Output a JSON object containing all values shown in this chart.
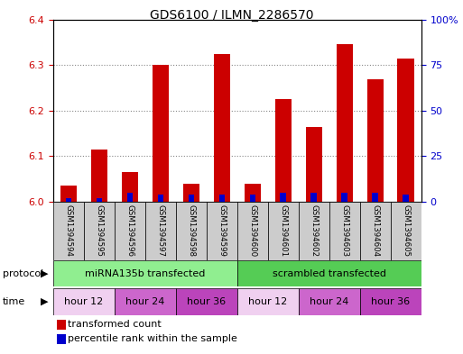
{
  "title": "GDS6100 / ILMN_2286570",
  "samples": [
    "GSM1394594",
    "GSM1394595",
    "GSM1394596",
    "GSM1394597",
    "GSM1394598",
    "GSM1394599",
    "GSM1394600",
    "GSM1394601",
    "GSM1394602",
    "GSM1394603",
    "GSM1394604",
    "GSM1394605"
  ],
  "transformed_counts": [
    6.035,
    6.115,
    6.065,
    6.3,
    6.04,
    6.325,
    6.04,
    6.225,
    6.165,
    6.345,
    6.268,
    6.315
  ],
  "percentile_ranks": [
    2,
    2,
    5,
    4,
    4,
    4,
    4,
    5,
    5,
    5,
    5,
    4
  ],
  "base_value": 6.0,
  "ylim_left": [
    6.0,
    6.4
  ],
  "ylim_right": [
    0,
    100
  ],
  "yticks_left": [
    6.0,
    6.1,
    6.2,
    6.3,
    6.4
  ],
  "yticks_right": [
    0,
    25,
    50,
    75,
    100
  ],
  "yticklabels_right": [
    "0",
    "25",
    "50",
    "75",
    "100%"
  ],
  "grid_values": [
    6.1,
    6.2,
    6.3
  ],
  "bar_color": "#cc0000",
  "pct_color": "#0000cc",
  "bar_width": 0.55,
  "pct_bar_width": 0.2,
  "protocols": [
    {
      "label": "miRNA135b transfected",
      "start": 0,
      "end": 6,
      "color": "#90ee90"
    },
    {
      "label": "scrambled transfected",
      "start": 6,
      "end": 12,
      "color": "#55cc55"
    }
  ],
  "times": [
    {
      "label": "hour 12",
      "start": 0,
      "end": 2,
      "color": "#f0d0f0"
    },
    {
      "label": "hour 24",
      "start": 2,
      "end": 4,
      "color": "#cc66cc"
    },
    {
      "label": "hour 36",
      "start": 4,
      "end": 6,
      "color": "#bb44bb"
    },
    {
      "label": "hour 12",
      "start": 6,
      "end": 8,
      "color": "#f0d0f0"
    },
    {
      "label": "hour 24",
      "start": 8,
      "end": 10,
      "color": "#cc66cc"
    },
    {
      "label": "hour 36",
      "start": 10,
      "end": 12,
      "color": "#bb44bb"
    }
  ],
  "legend_items": [
    {
      "label": "transformed count",
      "color": "#cc0000"
    },
    {
      "label": "percentile rank within the sample",
      "color": "#0000cc"
    }
  ],
  "bg_color": "#ffffff",
  "axis_color_left": "#cc0000",
  "axis_color_right": "#0000cc",
  "sample_bg_color": "#cccccc",
  "border_color": "#000000",
  "dotted_color": "#888888"
}
